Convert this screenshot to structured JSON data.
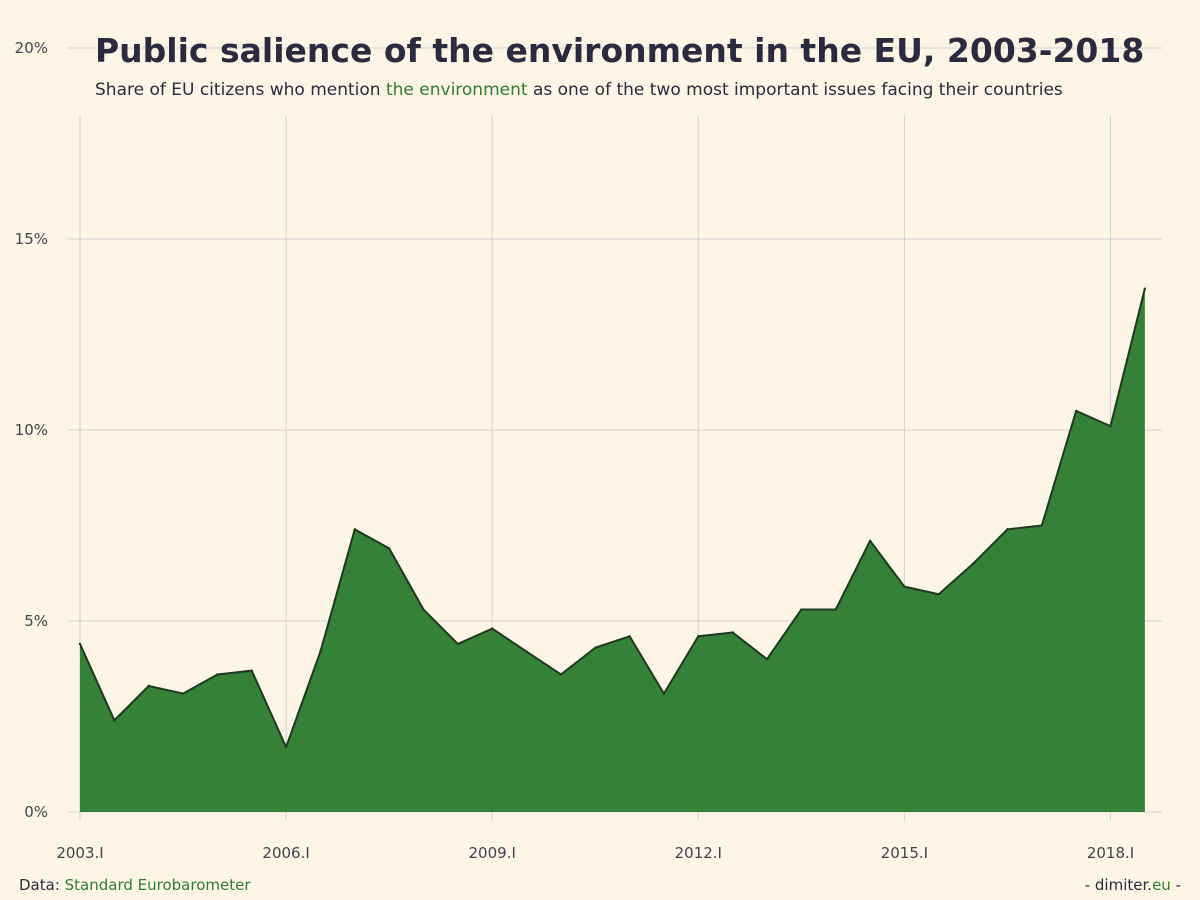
{
  "chart_data": {
    "type": "area",
    "title": "Public salience of the environment in the EU, 2003-2018",
    "subtitle": {
      "before": "Share of EU citizens who mention",
      "highlight": "the environment",
      "after": "as one of the two most important issues facing their countries"
    },
    "x": [
      "2003.I",
      "2003.II",
      "2004.I",
      "2004.II",
      "2005.I",
      "2005.II",
      "2006.I",
      "2006.II",
      "2007.I",
      "2007.II",
      "2008.I",
      "2008.II",
      "2009.I",
      "2009.II",
      "2010.I",
      "2010.II",
      "2011.I",
      "2011.II",
      "2012.I",
      "2012.II",
      "2013.I",
      "2013.II",
      "2014.I",
      "2014.II",
      "2015.I",
      "2015.II",
      "2016.I",
      "2016.II",
      "2017.I",
      "2017.II",
      "2018.I",
      "2018.II"
    ],
    "values": [
      4.4,
      2.4,
      3.3,
      3.1,
      3.6,
      3.7,
      1.7,
      4.2,
      7.4,
      6.9,
      5.3,
      4.4,
      4.8,
      4.2,
      3.6,
      4.3,
      4.6,
      3.1,
      4.6,
      4.7,
      4.0,
      5.3,
      5.3,
      7.1,
      5.9,
      5.7,
      6.5,
      7.4,
      7.5,
      10.5,
      10.1,
      13.7
    ],
    "x_ticks": [
      "2003.I",
      "2006.I",
      "2009.I",
      "2012.I",
      "2015.I",
      "2018.I"
    ],
    "y_ticks": [
      "0%",
      "5%",
      "10%",
      "15%",
      "20%"
    ],
    "ylim": [
      0,
      20
    ],
    "unit": "%",
    "grid": true,
    "legend": "none",
    "fill_color": "#2e7d32",
    "line_color": "#1e3a1e",
    "text_color": "#2b2a40",
    "background": "#fdf5e5",
    "highlight_color": "#2e7d32"
  },
  "footer": {
    "data_label": "Data:",
    "source": "Standard Eurobarometer",
    "credit_prefix": "- dimiter.",
    "credit_accent": "eu",
    "credit_suffix": " -"
  }
}
